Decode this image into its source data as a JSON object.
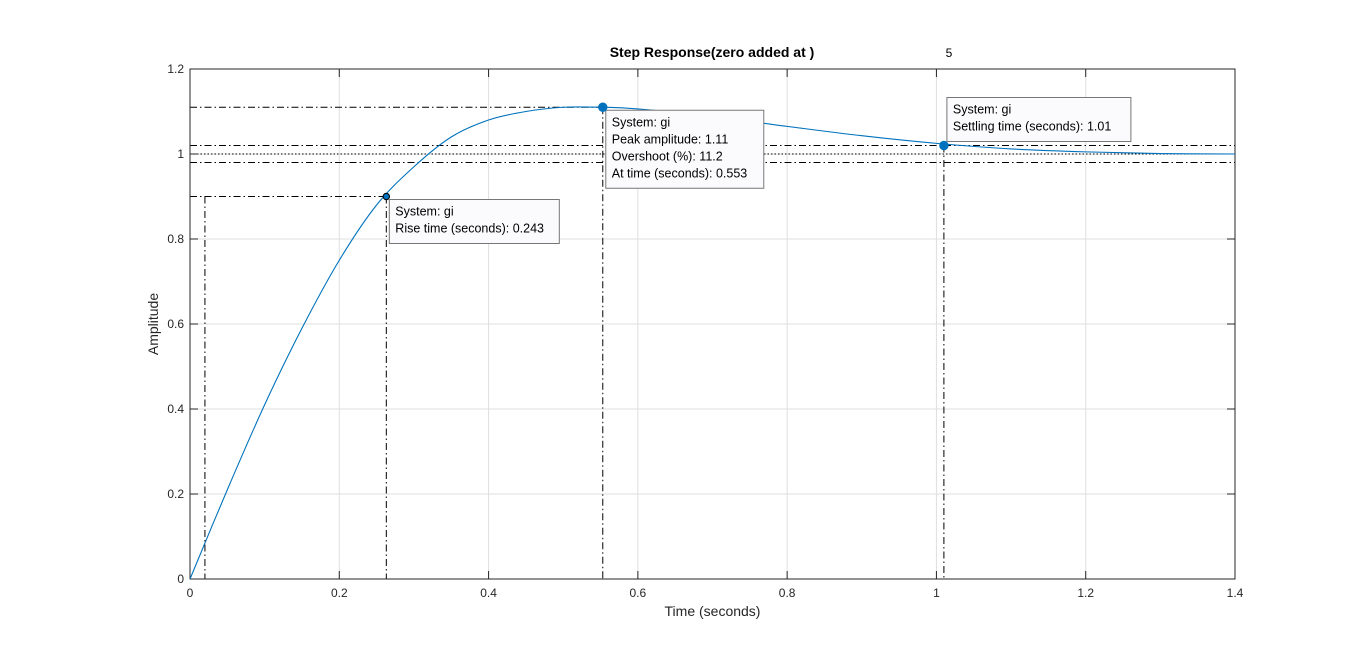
{
  "chart_data": {
    "type": "line",
    "title": "Step Response(zero added at   )",
    "title_suffix": "5",
    "xlabel": "Time (seconds)",
    "ylabel": "Amplitude",
    "xlim": [
      0,
      1.4
    ],
    "ylim": [
      0,
      1.2
    ],
    "x_ticks": [
      0,
      0.2,
      0.4,
      0.6,
      0.8,
      1,
      1.2,
      1.4
    ],
    "x_tick_labels": [
      "0",
      "0.2",
      "0.4",
      "0.6",
      "0.8",
      "1",
      "1.2",
      "1.4"
    ],
    "y_ticks": [
      0,
      0.2,
      0.4,
      0.6,
      0.8,
      1,
      1.2
    ],
    "y_tick_labels": [
      "0",
      "0.2",
      "0.4",
      "0.6",
      "0.8",
      "1",
      "1.2"
    ],
    "grid": true,
    "series_color": "#0072bd",
    "series": [
      {
        "x": [
          0,
          0.05,
          0.1,
          0.15,
          0.2,
          0.25,
          0.3,
          0.35,
          0.4,
          0.45,
          0.5,
          0.553,
          0.6,
          0.7,
          0.8,
          0.9,
          1.0,
          1.1,
          1.2,
          1.3,
          1.4
        ],
        "values": [
          0,
          0.21,
          0.41,
          0.59,
          0.75,
          0.88,
          0.97,
          1.04,
          1.08,
          1.1,
          1.11,
          1.11,
          1.106,
          1.088,
          1.065,
          1.043,
          1.025,
          1.012,
          1.005,
          1.001,
          1.0
        ]
      }
    ],
    "reference_lines": {
      "final_value": 1,
      "settling_band": [
        0.98,
        1.02
      ],
      "rise_time_start": {
        "time": 0.02,
        "amplitude": 0.1
      },
      "rise_level": 0.9
    },
    "datatips": [
      {
        "id": "rise",
        "x": 0.263,
        "y": 0.9,
        "lines": [
          "System: gi",
          "Rise time (seconds): 0.243"
        ]
      },
      {
        "id": "peak",
        "x": 0.553,
        "y": 1.11,
        "lines": [
          "System: gi",
          "Peak amplitude: 1.11",
          "Overshoot (%): 11.2",
          "At time (seconds): 0.553"
        ]
      },
      {
        "id": "settling",
        "x": 1.01,
        "y": 1.02,
        "lines": [
          "System: gi",
          "Settling time (seconds): 1.01"
        ]
      }
    ]
  }
}
